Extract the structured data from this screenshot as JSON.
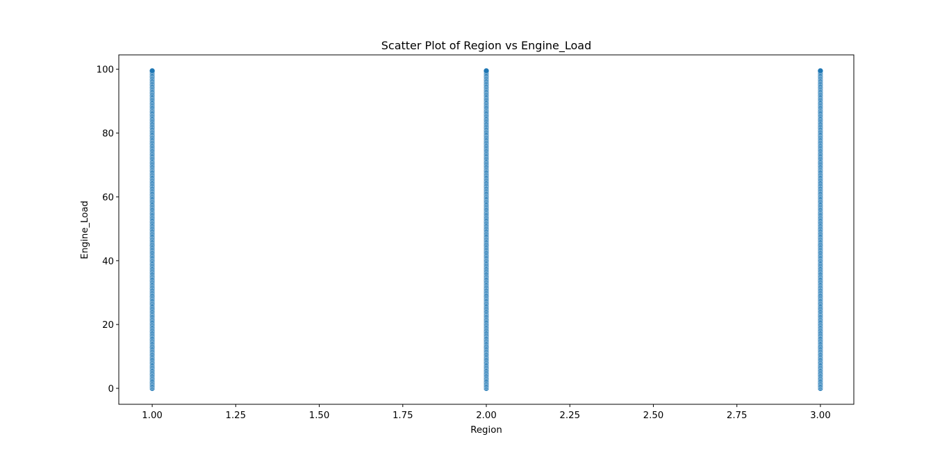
{
  "chart_data": {
    "type": "scatter",
    "title": "Scatter Plot of Region vs Engine_Load",
    "xlabel": "Region",
    "ylabel": "Engine_Load",
    "xlim": [
      0.9,
      3.1
    ],
    "ylim": [
      -5,
      104.5
    ],
    "x_ticks": [
      1.0,
      1.25,
      1.5,
      1.75,
      2.0,
      2.25,
      2.5,
      2.75,
      3.0
    ],
    "x_tick_labels": [
      "1.00",
      "1.25",
      "1.50",
      "1.75",
      "2.00",
      "2.25",
      "2.50",
      "2.75",
      "3.00"
    ],
    "y_ticks": [
      0,
      20,
      40,
      60,
      80,
      100
    ],
    "y_tick_labels": [
      "0",
      "20",
      "40",
      "60",
      "80",
      "100"
    ],
    "grid": false,
    "legend": "none",
    "marker_color": "#1f77b4",
    "marker_edge_color": "#ffffff",
    "series": [
      {
        "x_values": [
          1,
          2,
          3
        ],
        "y_range": [
          0,
          99.5
        ],
        "point_step": 0.5
      }
    ]
  }
}
